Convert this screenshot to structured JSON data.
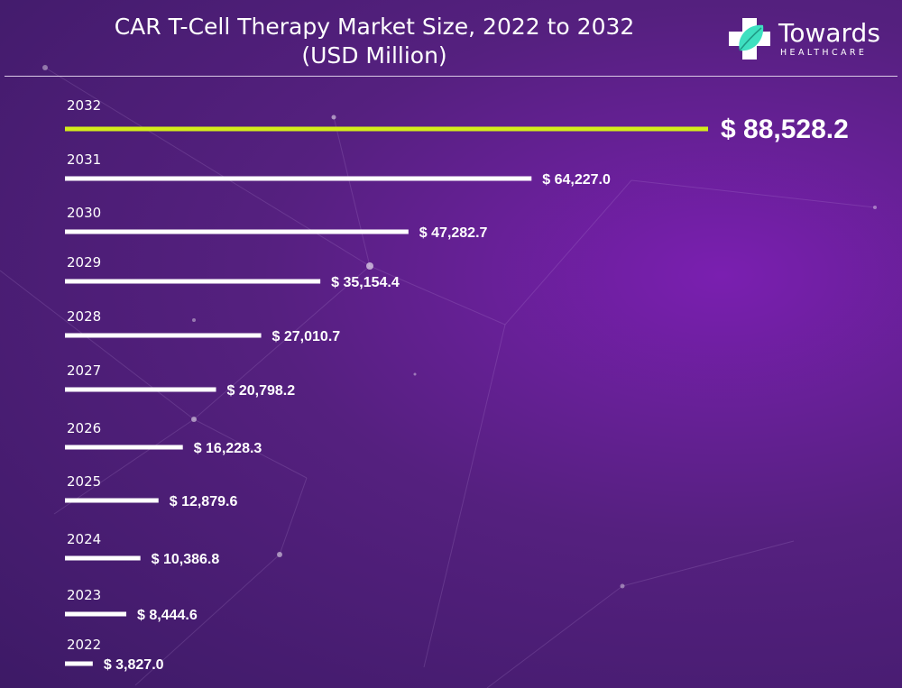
{
  "title_line1": "CAR T-Cell Therapy Market Size, 2022 to 2032",
  "title_line2": "(USD Million)",
  "logo": {
    "name": "Towards",
    "sub": "HEALTHCARE",
    "icon": "plus-leaf-icon",
    "accent": "#3ee0c0"
  },
  "colors": {
    "bar": "#ffffff",
    "highlight": "#d4ec1a"
  },
  "chart_data": {
    "type": "bar",
    "orientation": "horizontal",
    "categories": [
      "2032",
      "2031",
      "2030",
      "2029",
      "2028",
      "2027",
      "2026",
      "2025",
      "2024",
      "2023",
      "2022"
    ],
    "values": [
      88528.2,
      64227.0,
      47282.7,
      35154.4,
      27010.7,
      20798.2,
      16228.3,
      12879.6,
      10386.8,
      8444.6,
      3827.0
    ],
    "value_labels": [
      "$ 88,528.2",
      "$ 64,227.0",
      "$ 47,282.7",
      "$ 35,154.4",
      "$ 27,010.7",
      "$ 20,798.2",
      "$ 16,228.3",
      "$ 12,879.6",
      "$ 10,386.8",
      "$ 8,444.6",
      "$ 3,827.0"
    ],
    "highlight_category": "2032",
    "title": "CAR T-Cell Therapy Market Size, 2022 to 2032",
    "xlabel": "",
    "ylabel": "",
    "grid": false,
    "legend": false
  }
}
